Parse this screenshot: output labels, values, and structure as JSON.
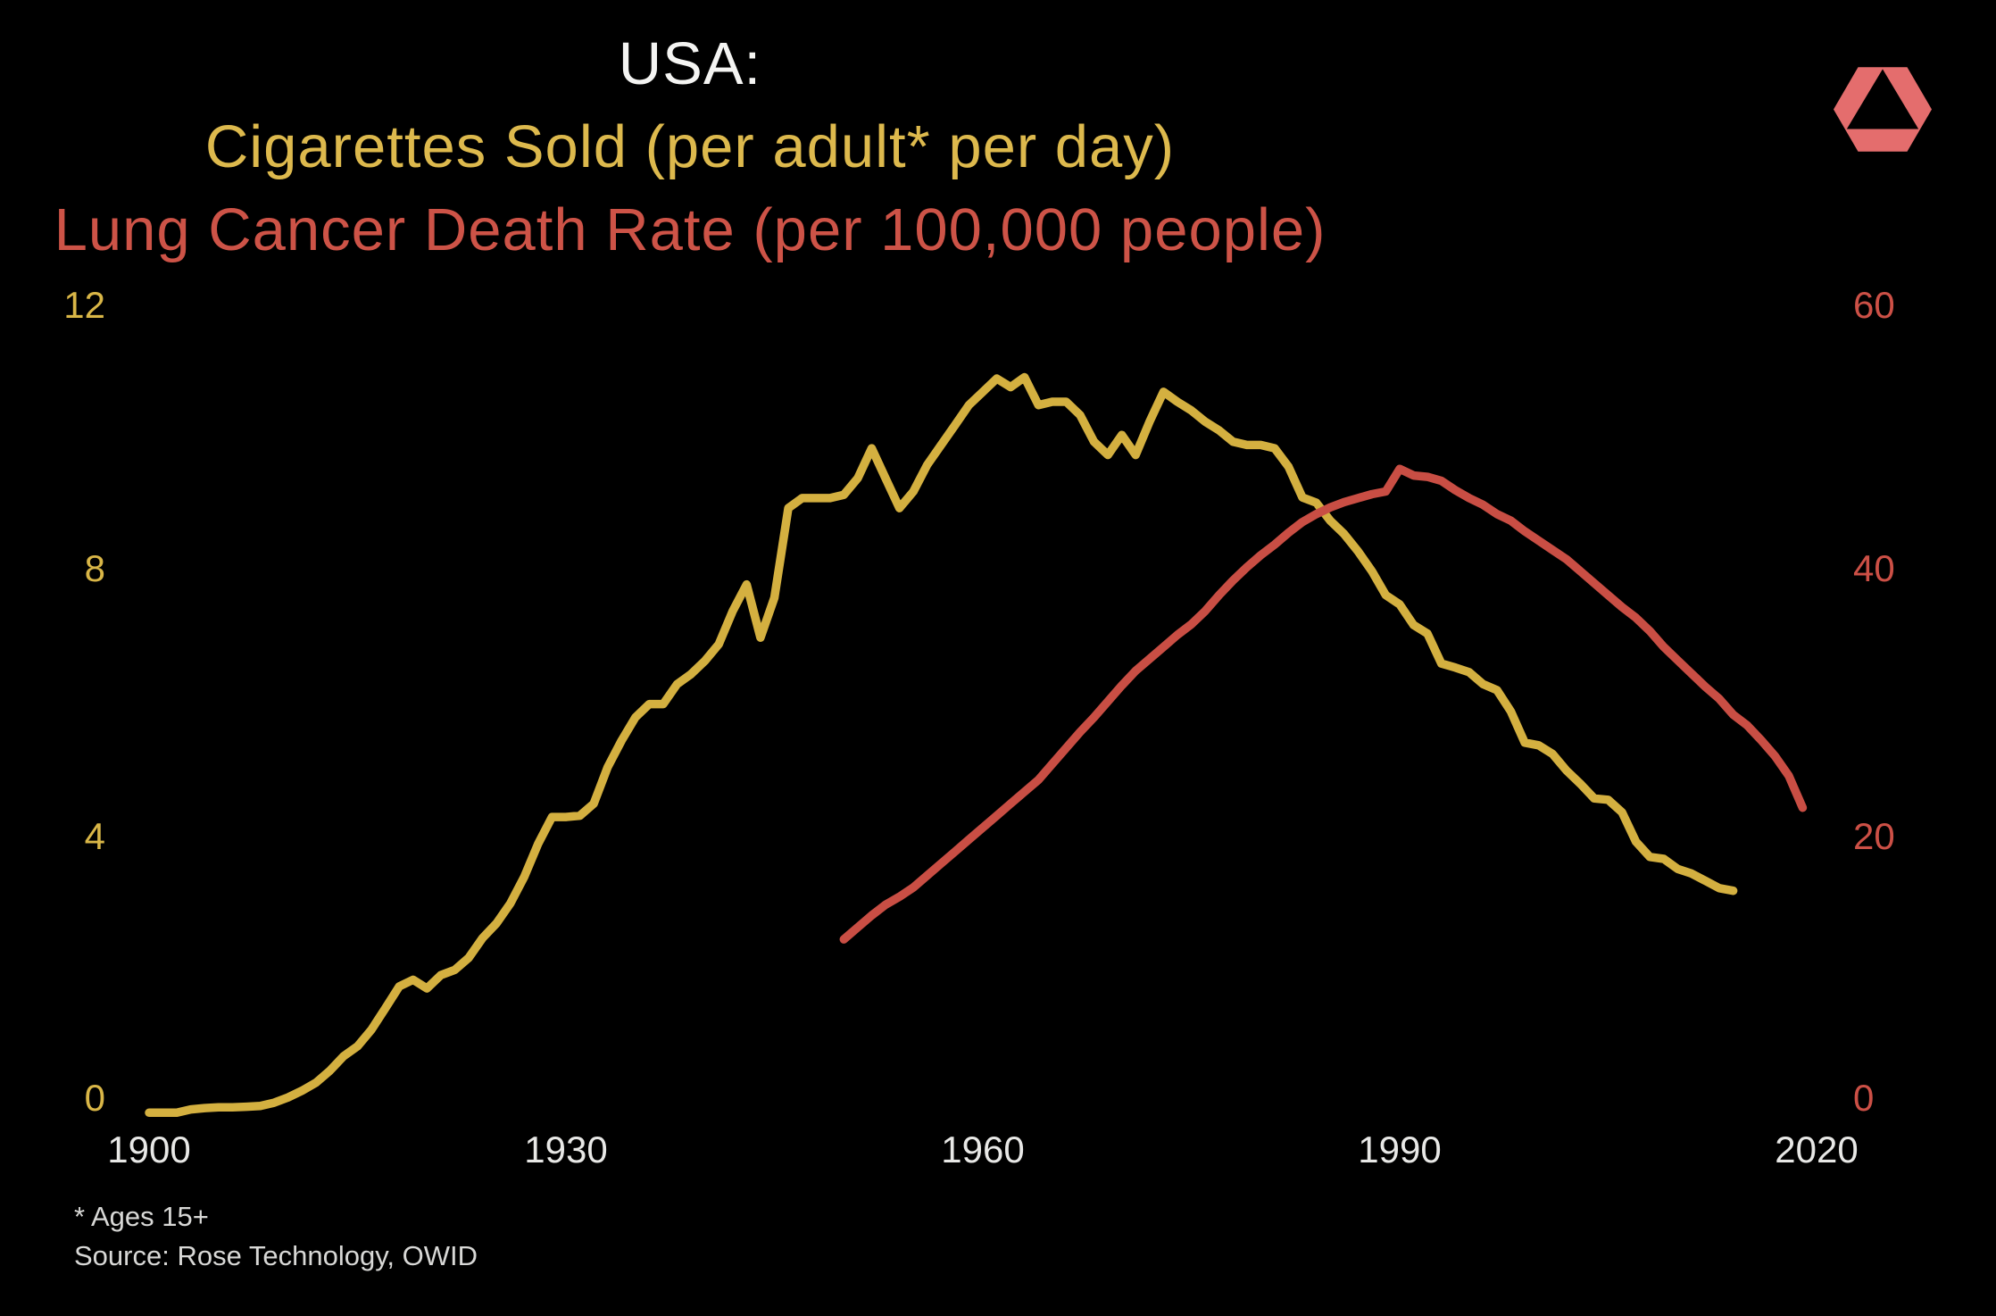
{
  "colors": {
    "background": "#000000",
    "title_white": "#f4f4f2",
    "cigarettes_yellow": "#ddb94d",
    "lung_cancer_red": "#cd5347",
    "axis_yellow": "#d9b647",
    "axis_red": "#cc5046",
    "x_label_gray": "#e8e8e6",
    "footnote_gray": "#d8d8d6",
    "logo_pink": "#e46d6d"
  },
  "header": {
    "title": "USA:",
    "series1_label": "Cigarettes Sold (per adult* per day)",
    "series2_label": "Lung Cancer Death Rate (per 100,000 people)"
  },
  "footnotes": {
    "note": "* Ages 15+",
    "source": "Source: Rose Technology, OWID"
  },
  "logo": {
    "name": "Rose Technology hexagon-triangle logo"
  },
  "chart_data": {
    "type": "line",
    "title": "USA: Cigarettes Sold (per adult* per day) vs Lung Cancer Death Rate (per 100,000 people)",
    "grid": "off",
    "legend": "colored title lines act as legend",
    "x_axis": {
      "ticks": [
        1900,
        1930,
        1960,
        1990,
        2020
      ],
      "range": [
        1900,
        2020
      ]
    },
    "y_axis_left": {
      "label": "Cigarettes sold per adult per day",
      "ticks": [
        0,
        4,
        8,
        12
      ],
      "range": [
        0,
        12
      ],
      "color": "#d9b647"
    },
    "y_axis_right": {
      "label": "Lung cancer death rate per 100,000 people",
      "ticks": [
        0,
        20,
        40,
        60
      ],
      "range": [
        0,
        60
      ],
      "color": "#cc5046"
    },
    "series": [
      {
        "id": "cigarettes",
        "name": "Cigarettes Sold (per adult* per day)",
        "axis": "left",
        "color": "#d4b040",
        "x_start": 1900,
        "x_end": 2014,
        "x_step": 1,
        "values": [
          0.05,
          0.05,
          0.05,
          0.1,
          0.12,
          0.13,
          0.13,
          0.14,
          0.15,
          0.2,
          0.28,
          0.38,
          0.5,
          0.68,
          0.9,
          1.05,
          1.3,
          1.62,
          1.95,
          2.05,
          1.92,
          2.12,
          2.2,
          2.38,
          2.68,
          2.9,
          3.2,
          3.6,
          4.1,
          4.5,
          4.5,
          4.52,
          4.7,
          5.25,
          5.65,
          6.0,
          6.2,
          6.2,
          6.5,
          6.65,
          6.85,
          7.1,
          7.6,
          8.0,
          7.2,
          7.8,
          9.15,
          9.3,
          9.3,
          9.3,
          9.35,
          9.6,
          10.05,
          9.6,
          9.15,
          9.4,
          9.8,
          10.1,
          10.4,
          10.7,
          10.9,
          11.1,
          10.97,
          11.12,
          10.7,
          10.75,
          10.75,
          10.55,
          10.15,
          9.95,
          10.25,
          9.95,
          10.45,
          10.9,
          10.75,
          10.62,
          10.45,
          10.32,
          10.15,
          10.1,
          10.1,
          10.05,
          9.77,
          9.31,
          9.23,
          8.96,
          8.76,
          8.5,
          8.2,
          7.84,
          7.7,
          7.39,
          7.26,
          6.81,
          6.75,
          6.68,
          6.5,
          6.41,
          6.09,
          5.62,
          5.58,
          5.45,
          5.2,
          5.0,
          4.78,
          4.76,
          4.57,
          4.13,
          3.9,
          3.87,
          3.72,
          3.65,
          3.54,
          3.43,
          3.39
        ]
      },
      {
        "id": "lung_cancer",
        "name": "Lung Cancer Death Rate (per 100,000 people)",
        "axis": "right",
        "color": "#c94e44",
        "x_start": 1950,
        "x_end": 2019,
        "x_step": 1,
        "values": [
          13.3,
          14.2,
          15.1,
          15.9,
          16.5,
          17.2,
          18.1,
          19.0,
          19.9,
          20.8,
          21.7,
          22.6,
          23.5,
          24.4,
          25.3,
          26.5,
          27.7,
          28.9,
          30.0,
          31.2,
          32.4,
          33.5,
          34.4,
          35.3,
          36.2,
          37.0,
          38.0,
          39.2,
          40.3,
          41.3,
          42.2,
          43.0,
          43.9,
          44.7,
          45.3,
          45.8,
          46.2,
          46.5,
          46.8,
          47.0,
          48.7,
          48.2,
          48.1,
          47.8,
          47.1,
          46.5,
          46.0,
          45.3,
          44.8,
          44.0,
          43.3,
          42.6,
          41.9,
          41.0,
          40.1,
          39.2,
          38.3,
          37.5,
          36.5,
          35.3,
          34.3,
          33.3,
          32.3,
          31.4,
          30.2,
          29.4,
          28.3,
          27.1,
          25.6,
          23.2
        ]
      }
    ]
  }
}
